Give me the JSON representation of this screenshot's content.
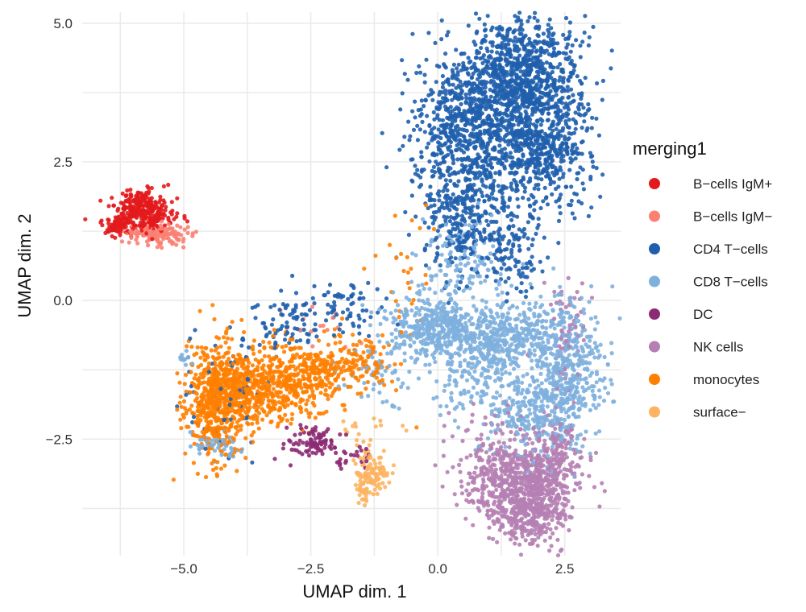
{
  "chart_data": {
    "type": "scatter",
    "title": "",
    "xlabel": "UMAP dim. 1",
    "ylabel": "UMAP dim. 2",
    "xlim": [
      -7.0,
      3.6
    ],
    "ylim": [
      -4.6,
      5.2
    ],
    "x_ticks": [
      -5.0,
      -2.5,
      0.0,
      2.5
    ],
    "x_tick_labels": [
      "−5.0",
      "−2.5",
      "0.0",
      "2.5"
    ],
    "y_ticks": [
      -2.5,
      0.0,
      2.5,
      5.0
    ],
    "y_tick_labels": [
      "−2.5",
      "0.0",
      "2.5",
      "5.0"
    ],
    "grid": true,
    "legend": {
      "title": "merging1",
      "placement": "right",
      "entries": [
        {
          "label": "B−cells IgM+",
          "color": "#e31a1c"
        },
        {
          "label": "B−cells IgM−",
          "color": "#fb8072"
        },
        {
          "label": "CD4 T−cells",
          "color": "#1f5fad"
        },
        {
          "label": "CD8 T−cells",
          "color": "#7eb0de"
        },
        {
          "label": "DC",
          "color": "#8c2a73"
        },
        {
          "label": "NK cells",
          "color": "#b57fb3"
        },
        {
          "label": "monocytes",
          "color": "#ff7f00"
        },
        {
          "label": "surface−",
          "color": "#fdb462"
        }
      ]
    },
    "series": [
      {
        "name": "CD4 T−cells",
        "color": "#1f5fad",
        "clusters": [
          {
            "cx": 1.7,
            "cy": 4.0,
            "sx": 0.55,
            "sy": 0.55,
            "n": 900
          },
          {
            "cx": 0.6,
            "cy": 3.2,
            "sx": 0.55,
            "sy": 0.7,
            "n": 700
          },
          {
            "cx": 2.0,
            "cy": 2.7,
            "sx": 0.5,
            "sy": 0.5,
            "n": 500
          },
          {
            "cx": 0.5,
            "cy": 1.5,
            "sx": 0.45,
            "sy": 0.5,
            "n": 300
          },
          {
            "cx": 1.5,
            "cy": 0.9,
            "sx": 0.3,
            "sy": 0.4,
            "n": 120
          },
          {
            "cx": -1.9,
            "cy": -0.1,
            "sx": 0.4,
            "sy": 0.25,
            "n": 70
          },
          {
            "cx": -3.0,
            "cy": -0.5,
            "sx": 0.45,
            "sy": 0.25,
            "n": 80
          },
          {
            "cx": -4.2,
            "cy": -1.6,
            "sx": 0.45,
            "sy": 0.5,
            "n": 60
          }
        ]
      },
      {
        "name": "CD8 T−cells",
        "color": "#7eb0de",
        "clusters": [
          {
            "cx": -0.1,
            "cy": -0.5,
            "sx": 0.45,
            "sy": 0.3,
            "n": 380
          },
          {
            "cx": 1.3,
            "cy": -0.6,
            "sx": 0.6,
            "sy": 0.3,
            "n": 420
          },
          {
            "cx": 2.6,
            "cy": -1.2,
            "sx": 0.35,
            "sy": 0.6,
            "n": 380
          },
          {
            "cx": 1.9,
            "cy": -2.0,
            "sx": 0.5,
            "sy": 0.45,
            "n": 300
          },
          {
            "cx": 0.7,
            "cy": -1.3,
            "sx": 0.4,
            "sy": 0.4,
            "n": 150
          },
          {
            "cx": 0.5,
            "cy": 0.8,
            "sx": 0.45,
            "sy": 0.4,
            "n": 130
          },
          {
            "cx": -1.2,
            "cy": -1.3,
            "sx": 0.4,
            "sy": 0.4,
            "n": 60
          },
          {
            "cx": -4.3,
            "cy": -2.6,
            "sx": 0.3,
            "sy": 0.12,
            "n": 50
          },
          {
            "cx": -5.0,
            "cy": -1.05,
            "sx": 0.06,
            "sy": 0.05,
            "n": 12
          }
        ]
      },
      {
        "name": "NK cells",
        "color": "#b57fb3",
        "clusters": [
          {
            "cx": 1.6,
            "cy": -3.3,
            "sx": 0.55,
            "sy": 0.35,
            "n": 650
          },
          {
            "cx": 1.8,
            "cy": -3.9,
            "sx": 0.35,
            "sy": 0.25,
            "n": 250
          },
          {
            "cx": 2.3,
            "cy": -2.7,
            "sx": 0.3,
            "sy": 0.3,
            "n": 150
          },
          {
            "cx": 2.6,
            "cy": -0.5,
            "sx": 0.25,
            "sy": 0.5,
            "n": 60
          },
          {
            "cx": 1.0,
            "cy": -2.5,
            "sx": 0.4,
            "sy": 0.4,
            "n": 60
          }
        ]
      },
      {
        "name": "monocytes",
        "color": "#ff7f00",
        "clusters": [
          {
            "cx": -4.4,
            "cy": -1.8,
            "sx": 0.3,
            "sy": 0.55,
            "n": 520
          },
          {
            "cx": -3.6,
            "cy": -1.6,
            "sx": 0.5,
            "sy": 0.35,
            "n": 450
          },
          {
            "cx": -2.6,
            "cy": -1.4,
            "sx": 0.45,
            "sy": 0.3,
            "n": 280
          },
          {
            "cx": -1.7,
            "cy": -1.1,
            "sx": 0.35,
            "sy": 0.25,
            "n": 120
          },
          {
            "cx": -0.6,
            "cy": 0.4,
            "sx": 0.3,
            "sy": 0.6,
            "n": 30
          }
        ]
      },
      {
        "name": "DC",
        "color": "#8c2a73",
        "clusters": [
          {
            "cx": -2.5,
            "cy": -2.55,
            "sx": 0.25,
            "sy": 0.12,
            "n": 90
          },
          {
            "cx": -1.7,
            "cy": -2.8,
            "sx": 0.25,
            "sy": 0.12,
            "n": 25
          }
        ]
      },
      {
        "name": "surface−",
        "color": "#fdb462",
        "clusters": [
          {
            "cx": -1.3,
            "cy": -3.1,
            "sx": 0.16,
            "sy": 0.18,
            "n": 90
          },
          {
            "cx": -1.45,
            "cy": -3.45,
            "sx": 0.08,
            "sy": 0.1,
            "n": 25
          },
          {
            "cx": -1.4,
            "cy": -2.4,
            "sx": 0.3,
            "sy": 0.25,
            "n": 25
          }
        ]
      },
      {
        "name": "B−cells IgM+",
        "color": "#e31a1c",
        "clusters": [
          {
            "cx": -5.8,
            "cy": 1.6,
            "sx": 0.3,
            "sy": 0.18,
            "n": 320
          },
          {
            "cx": -6.3,
            "cy": 1.35,
            "sx": 0.15,
            "sy": 0.1,
            "n": 60
          }
        ]
      },
      {
        "name": "B−cells IgM−",
        "color": "#fb8072",
        "clusters": [
          {
            "cx": -5.5,
            "cy": 1.2,
            "sx": 0.3,
            "sy": 0.1,
            "n": 130
          },
          {
            "cx": -2.2,
            "cy": -0.5,
            "sx": 0.4,
            "sy": 0.3,
            "n": 15
          }
        ]
      }
    ]
  }
}
